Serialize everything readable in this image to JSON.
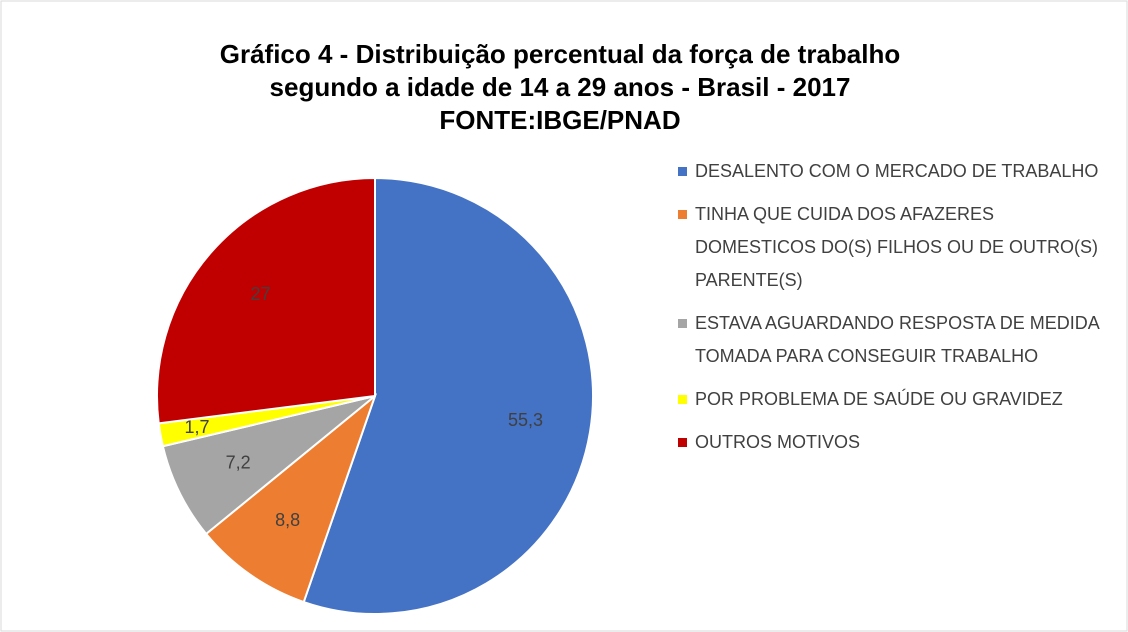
{
  "chart_data": {
    "type": "pie",
    "title": [
      "Gráfico 4 - Distribuição percentual da força de trabalho",
      "segundo a idade de 14 a 29 anos - Brasil - 2017",
      "FONTE:IBGE/PNAD"
    ],
    "categories": [
      "DESALENTO COM O MERCADO DE TRABALHO",
      "TINHA QUE CUIDA DOS AFAZERES DOMESTICOS DO(S) FILHOS OU DE OUTRO(S) PARENTE(S)",
      "ESTAVA AGUARDANDO RESPOSTA DE MEDIDA TOMADA PARA CONSEGUIR TRABALHO",
      "POR PROBLEMA DE SAÚDE OU GRAVIDEZ",
      "OUTROS MOTIVOS"
    ],
    "values": [
      55.3,
      8.8,
      7.2,
      1.7,
      27
    ],
    "value_labels": [
      "55,3",
      "8,8",
      "7,2",
      "1,7",
      "27"
    ],
    "colors": [
      "#4472c4",
      "#ed7d31",
      "#a5a5a5",
      "#ffff00",
      "#c00000"
    ],
    "legend": "right"
  }
}
